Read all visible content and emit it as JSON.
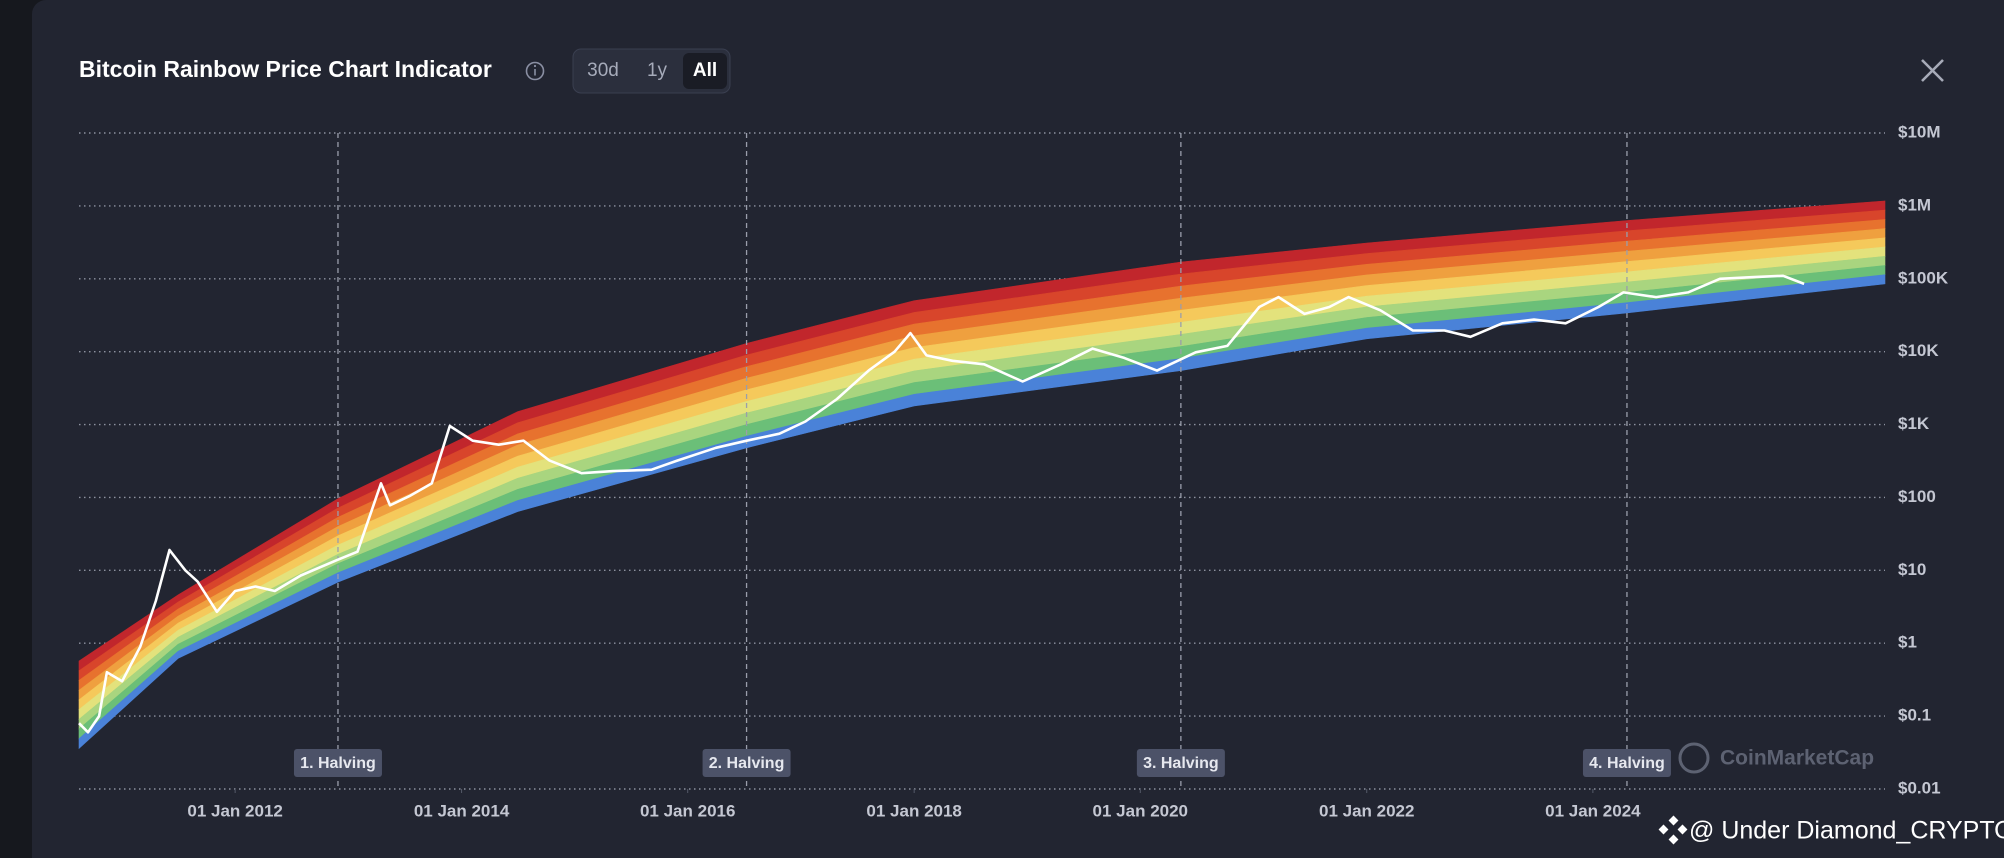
{
  "header": {
    "title": "Bitcoin Rainbow Price Chart Indicator",
    "ranges": [
      "30d",
      "1y",
      "All"
    ],
    "active_range": 2
  },
  "chart_data": {
    "type": "line",
    "xlim": [
      "2010-08-15",
      "2026-08-01"
    ],
    "xticks": [
      {
        "value": "2012-01-01",
        "label": "01 Jan 2012"
      },
      {
        "value": "2014-01-01",
        "label": "01 Jan 2014"
      },
      {
        "value": "2016-01-01",
        "label": "01 Jan 2016"
      },
      {
        "value": "2018-01-01",
        "label": "01 Jan 2018"
      },
      {
        "value": "2020-01-01",
        "label": "01 Jan 2020"
      },
      {
        "value": "2022-01-01",
        "label": "01 Jan 2022"
      },
      {
        "value": "2024-01-01",
        "label": "01 Jan 2024"
      }
    ],
    "ylim": [
      0.01,
      10000000
    ],
    "log_scale": true,
    "grid": true,
    "yticks": [
      {
        "value": 0.01,
        "label": "$0.01"
      },
      {
        "value": 0.1,
        "label": "$0.1"
      },
      {
        "value": 1,
        "label": "$1"
      },
      {
        "value": 10,
        "label": "$10"
      },
      {
        "value": 100,
        "label": "$100"
      },
      {
        "value": 1000,
        "label": "$1K"
      },
      {
        "value": 10000,
        "label": "$10K"
      },
      {
        "value": 100000,
        "label": "$100K"
      },
      {
        "value": 1000000,
        "label": "$1M"
      },
      {
        "value": 10000000,
        "label": "$10M"
      }
    ],
    "bands": {
      "colors": [
        "#c1262c",
        "#d8452b",
        "#e7722e",
        "#efa03f",
        "#f5c95b",
        "#e3e27c",
        "#a9d57f",
        "#6bbf78",
        "#4a82d8"
      ],
      "x": [
        "2010-08-15",
        "2011-07-01",
        "2012-11-28",
        "2014-07-01",
        "2016-07-09",
        "2018-01-01",
        "2020-05-11",
        "2022-01-01",
        "2024-04-20",
        "2026-08-01"
      ],
      "lower": [
        0.036,
        0.62,
        6.9,
        64,
        480,
        1800,
        5500,
        15000,
        34000,
        85000
      ],
      "upper": [
        0.57,
        4.6,
        96,
        1500,
        13000,
        50000,
        170000,
        310000,
        630000,
        1170000
      ]
    },
    "series": [
      {
        "color": "#ffffff",
        "x": [
          "2010-08-15",
          "2010-09-13",
          "2010-10-19",
          "2010-11-13",
          "2011-01-01",
          "2011-03-01",
          "2011-04-20",
          "2011-06-03",
          "2011-07-24",
          "2011-09-02",
          "2011-11-03",
          "2012-01-01",
          "2012-03-07",
          "2012-05-08",
          "2012-07-31",
          "2012-11-22",
          "2013-01-30",
          "2013-04-16",
          "2013-05-15",
          "2013-07-16",
          "2013-09-27",
          "2013-11-24",
          "2014-02-06",
          "2014-05-01",
          "2014-07-20",
          "2014-10-12",
          "2015-01-23",
          "2015-05-05",
          "2015-09-06",
          "2015-11-28",
          "2016-04-01",
          "2016-07-09",
          "2016-10-23",
          "2017-01-15",
          "2017-04-27",
          "2017-08-07",
          "2017-10-30",
          "2017-12-20",
          "2018-02-10",
          "2018-05-05",
          "2018-08-15",
          "2018-12-17",
          "2019-04-20",
          "2019-07-31",
          "2019-11-10",
          "2020-02-24",
          "2020-06-28",
          "2020-10-08",
          "2021-01-19",
          "2021-03-22",
          "2021-06-14",
          "2021-09-02",
          "2021-11-03",
          "2022-02-14",
          "2022-05-30",
          "2022-09-09",
          "2022-12-02",
          "2023-03-15",
          "2023-06-25",
          "2023-10-05",
          "2024-01-19",
          "2024-04-09",
          "2024-07-23",
          "2024-11-03",
          "2025-02-14",
          "2025-05-27",
          "2025-09-06",
          "2025-11-13"
        ],
        "values": [
          0.08,
          0.06,
          0.1,
          0.4,
          0.3,
          0.9,
          3.8,
          19,
          10,
          7,
          2.7,
          5.2,
          6,
          5.2,
          8.5,
          13.7,
          18,
          156,
          78,
          104,
          156,
          955,
          600,
          530,
          600,
          320,
          215,
          230,
          240,
          320,
          480,
          600,
          750,
          1100,
          2240,
          5500,
          10000,
          18000,
          8900,
          7500,
          6700,
          3900,
          6700,
          11000,
          8200,
          5500,
          9800,
          12000,
          41000,
          56000,
          33000,
          41000,
          56000,
          37000,
          19500,
          19500,
          16000,
          24500,
          27500,
          24500,
          41000,
          65000,
          56000,
          65000,
          100000,
          105000,
          110000,
          85000
        ]
      }
    ],
    "annotations": [
      {
        "x": "2012-11-28",
        "label": "1. Halving"
      },
      {
        "x": "2016-07-09",
        "label": "2. Halving"
      },
      {
        "x": "2020-05-11",
        "label": "3. Halving"
      },
      {
        "x": "2024-04-20",
        "label": "4. Halving"
      }
    ]
  },
  "watermark": "CoinMarketCap",
  "credit": "@ Under Diamond_CRYPTO"
}
